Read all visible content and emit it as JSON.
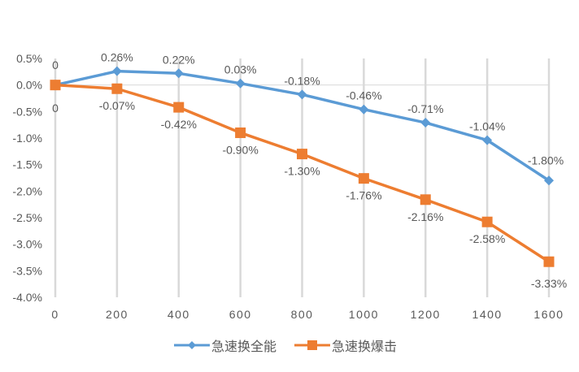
{
  "chart_data": {
    "type": "line",
    "title": "",
    "xlabel": "",
    "ylabel": "",
    "categories": [
      "0",
      "200",
      "400",
      "600",
      "800",
      "1000",
      "1200",
      "1400",
      "1600"
    ],
    "x": [
      0,
      200,
      400,
      600,
      800,
      1000,
      1200,
      1400,
      1600
    ],
    "ylim": [
      -4.0,
      0.5
    ],
    "yticks": [
      "0.5%",
      "0.0%",
      "-0.5%",
      "-1.0%",
      "-1.5%",
      "-2.0%",
      "-2.5%",
      "-3.0%",
      "-3.5%",
      "-4.0%"
    ],
    "grid": "vertical",
    "legend_position": "bottom",
    "series": [
      {
        "name": "急速换全能",
        "color": "#5B9BD5",
        "marker": "diamond",
        "values": [
          0,
          0.26,
          0.22,
          0.03,
          -0.18,
          -0.46,
          -0.71,
          -1.04,
          -1.8
        ],
        "labels": [
          "0",
          "0.26%",
          "0.22%",
          "0.03%",
          "-0.18%",
          "-0.46%",
          "-0.71%",
          "-1.04%",
          "-1.80%"
        ]
      },
      {
        "name": "急速换爆击",
        "color": "#ED7D31",
        "marker": "square",
        "values": [
          0,
          -0.07,
          -0.42,
          -0.9,
          -1.3,
          -1.76,
          -2.16,
          -2.58,
          -3.33
        ],
        "labels": [
          "0",
          "-0.07%",
          "-0.42%",
          "-0.90%",
          "-1.30%",
          "-1.76%",
          "-2.16%",
          "-2.58%",
          "-3.33%"
        ]
      }
    ]
  },
  "legend": {
    "items": [
      {
        "label": "急速换全能",
        "color": "#5B9BD5"
      },
      {
        "label": "急速换爆击",
        "color": "#ED7D31"
      }
    ]
  }
}
